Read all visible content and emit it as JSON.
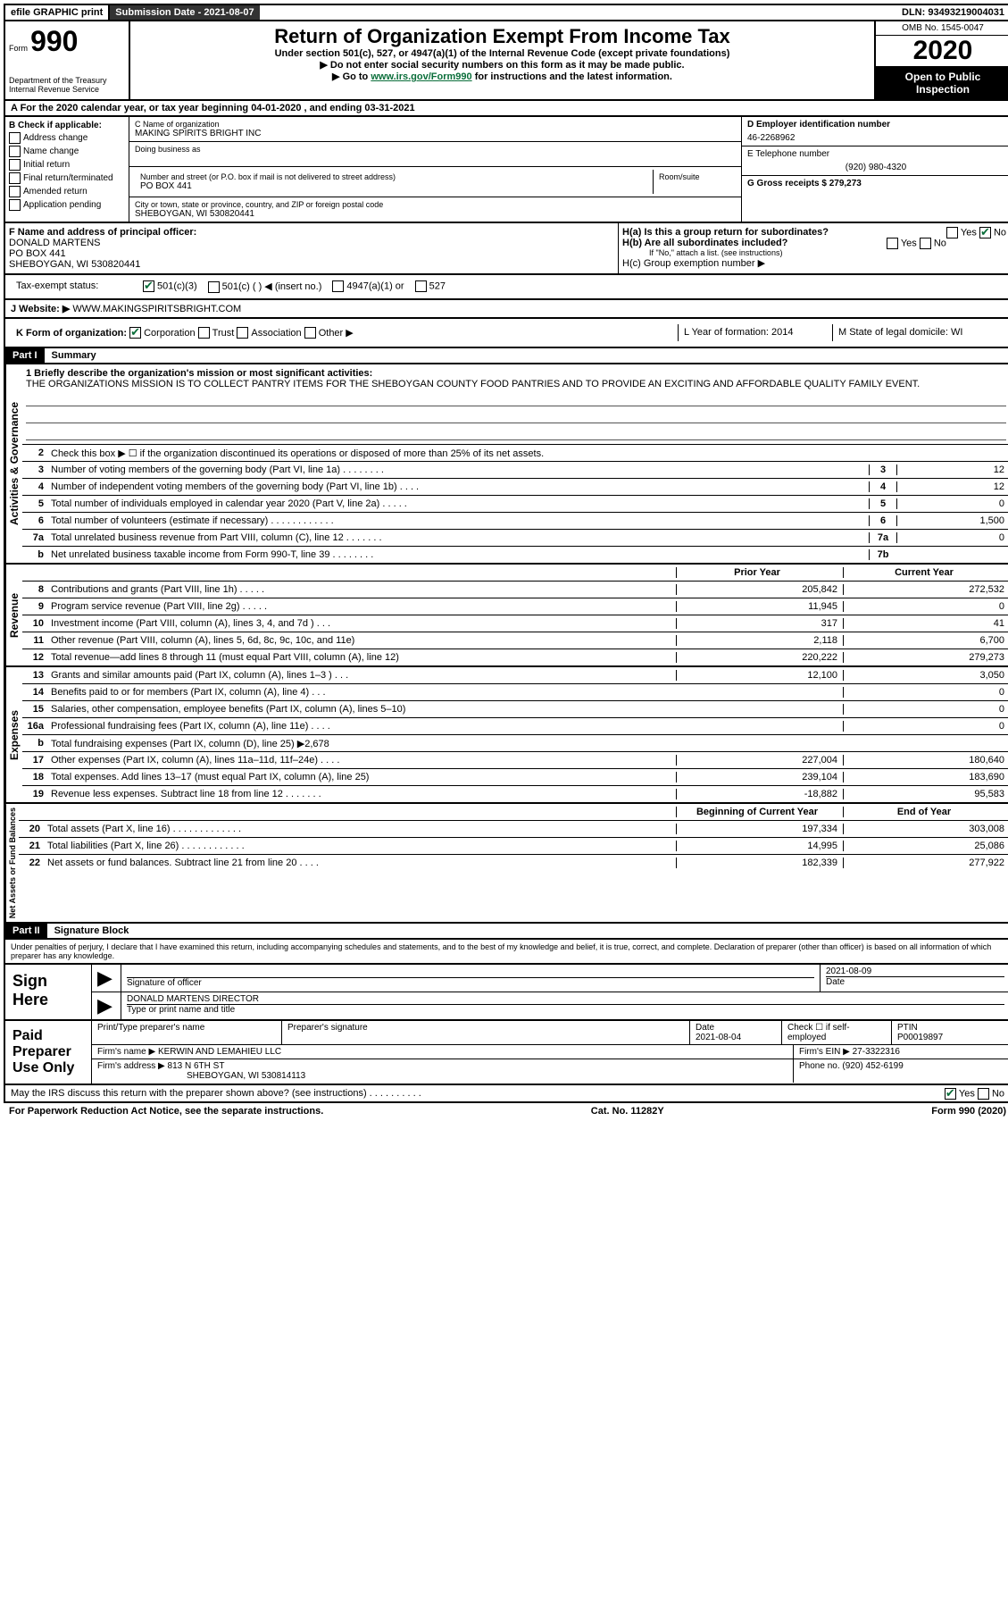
{
  "topbar": {
    "efile": "efile GRAPHIC print",
    "submission_label": "Submission Date - 2021-08-07",
    "dln": "DLN: 93493219004031"
  },
  "header": {
    "form_label": "Form",
    "form_no": "990",
    "title": "Return of Organization Exempt From Income Tax",
    "subtitle1": "Under section 501(c), 527, or 4947(a)(1) of the Internal Revenue Code (except private foundations)",
    "subtitle2": "▶ Do not enter social security numbers on this form as it may be made public.",
    "subtitle3_prefix": "▶ Go to ",
    "subtitle3_link": "www.irs.gov/Form990",
    "subtitle3_suffix": " for instructions and the latest information.",
    "omb": "OMB No. 1545-0047",
    "year": "2020",
    "open": "Open to Public Inspection",
    "dept": "Department of the Treasury Internal Revenue Service"
  },
  "period": "A For the 2020 calendar year, or tax year beginning 04-01-2020    , and ending 03-31-2021",
  "boxB": {
    "label": "B Check if applicable:",
    "opts": [
      "Address change",
      "Name change",
      "Initial return",
      "Final return/terminated",
      "Amended return",
      "Application pending"
    ]
  },
  "boxC": {
    "name_label": "C Name of organization",
    "name": "MAKING SPIRITS BRIGHT INC",
    "dba_label": "Doing business as",
    "addr_label": "Number and street (or P.O. box if mail is not delivered to street address)",
    "room_label": "Room/suite",
    "addr": "PO BOX 441",
    "city_label": "City or town, state or province, country, and ZIP or foreign postal code",
    "city": "SHEBOYGAN, WI  530820441"
  },
  "boxD": {
    "ein_label": "D Employer identification number",
    "ein": "46-2268962",
    "phone_label": "E Telephone number",
    "phone": "(920) 980-4320",
    "gross_label": "G Gross receipts $ 279,273"
  },
  "boxF": {
    "label": "F  Name and address of principal officer:",
    "name": "DONALD MARTENS",
    "addr1": "PO BOX 441",
    "addr2": "SHEBOYGAN, WI  530820441"
  },
  "boxH": {
    "ha": "H(a)  Is this a group return for subordinates?",
    "hb": "H(b)  Are all subordinates included?",
    "hb_note": "If \"No,\" attach a list. (see instructions)",
    "hc": "H(c)  Group exemption number ▶"
  },
  "taxexempt": {
    "label": "Tax-exempt status:",
    "o1": "501(c)(3)",
    "o2": "501(c) (  ) ◀ (insert no.)",
    "o3": "4947(a)(1) or",
    "o4": "527"
  },
  "website": {
    "label": "J    Website: ▶",
    "val": "WWW.MAKINGSPIRITSBRIGHT.COM"
  },
  "boxK": {
    "label": "K Form of organization:",
    "corp": "Corporation",
    "trust": "Trust",
    "assoc": "Association",
    "other": "Other ▶"
  },
  "boxL": "L Year of formation: 2014",
  "boxM": "M State of legal domicile: WI",
  "part1": {
    "header": "Part I",
    "title": "Summary",
    "line1_label": "1  Briefly describe the organization's mission or most significant activities:",
    "mission": "THE ORGANIZATIONS MISSION IS TO COLLECT PANTRY ITEMS FOR THE SHEBOYGAN COUNTY FOOD PANTRIES AND TO PROVIDE AN EXCITING AND AFFORDABLE QUALITY FAMILY EVENT.",
    "line2": "Check this box ▶ ☐  if the organization discontinued its operations or disposed of more than 25% of its net assets.",
    "governance_label": "Activities & Governance",
    "revenue_label": "Revenue",
    "expenses_label": "Expenses",
    "netassets_label": "Net Assets or Fund Balances",
    "gov_lines": [
      {
        "n": "3",
        "t": "Number of voting members of the governing body (Part VI, line 1a)  .   .   .   .   .   .   .   .",
        "b": "3",
        "v": "12"
      },
      {
        "n": "4",
        "t": "Number of independent voting members of the governing body (Part VI, line 1b)   .   .   .   .",
        "b": "4",
        "v": "12"
      },
      {
        "n": "5",
        "t": "Total number of individuals employed in calendar year 2020 (Part V, line 2a)   .   .   .   .   .",
        "b": "5",
        "v": "0"
      },
      {
        "n": "6",
        "t": "Total number of volunteers (estimate if necessary)    .   .   .   .   .   .   .   .   .   .   .   .",
        "b": "6",
        "v": "1,500"
      },
      {
        "n": "7a",
        "t": "Total unrelated business revenue from Part VIII, column (C), line 12   .   .   .   .   .   .   .",
        "b": "7a",
        "v": "0"
      },
      {
        "n": "b",
        "t": "Net unrelated business taxable income from Form 990-T, line 39    .   .   .   .   .   .   .   .",
        "b": "7b",
        "v": ""
      }
    ],
    "prior_year": "Prior Year",
    "current_year": "Current Year",
    "rev_lines": [
      {
        "n": "8",
        "t": "Contributions and grants (Part VIII, line 1h)   .   .   .   .   .",
        "py": "205,842",
        "cy": "272,532"
      },
      {
        "n": "9",
        "t": "Program service revenue (Part VIII, line 2g)    .   .   .   .   .",
        "py": "11,945",
        "cy": "0"
      },
      {
        "n": "10",
        "t": "Investment income (Part VIII, column (A), lines 3, 4, and 7d )    .   .   .",
        "py": "317",
        "cy": "41"
      },
      {
        "n": "11",
        "t": "Other revenue (Part VIII, column (A), lines 5, 6d, 8c, 9c, 10c, and 11e)",
        "py": "2,118",
        "cy": "6,700"
      },
      {
        "n": "12",
        "t": "Total revenue—add lines 8 through 11 (must equal Part VIII, column (A), line 12)",
        "py": "220,222",
        "cy": "279,273"
      }
    ],
    "exp_lines": [
      {
        "n": "13",
        "t": "Grants and similar amounts paid (Part IX, column (A), lines 1–3 )   .   .   .",
        "py": "12,100",
        "cy": "3,050"
      },
      {
        "n": "14",
        "t": "Benefits paid to or for members (Part IX, column (A), line 4)   .   .   .",
        "py": "",
        "cy": "0"
      },
      {
        "n": "15",
        "t": "Salaries, other compensation, employee benefits (Part IX, column (A), lines 5–10)",
        "py": "",
        "cy": "0"
      },
      {
        "n": "16a",
        "t": "Professional fundraising fees (Part IX, column (A), line 11e)   .   .   .   .",
        "py": "",
        "cy": "0"
      },
      {
        "n": "b",
        "t": "Total fundraising expenses (Part IX, column (D), line 25) ▶2,678",
        "py": "GRAY",
        "cy": "GRAY"
      },
      {
        "n": "17",
        "t": "Other expenses (Part IX, column (A), lines 11a–11d, 11f–24e)   .   .   .   .",
        "py": "227,004",
        "cy": "180,640"
      },
      {
        "n": "18",
        "t": "Total expenses. Add lines 13–17 (must equal Part IX, column (A), line 25)",
        "py": "239,104",
        "cy": "183,690"
      },
      {
        "n": "19",
        "t": "Revenue less expenses. Subtract line 18 from line 12  .   .   .   .   .   .   .",
        "py": "-18,882",
        "cy": "95,583"
      }
    ],
    "boy": "Beginning of Current Year",
    "eoy": "End of Year",
    "na_lines": [
      {
        "n": "20",
        "t": "Total assets (Part X, line 16)  .   .   .   .   .   .   .   .   .   .   .   .   .",
        "py": "197,334",
        "cy": "303,008"
      },
      {
        "n": "21",
        "t": "Total liabilities (Part X, line 26)   .   .   .   .   .   .   .   .   .   .   .   .",
        "py": "14,995",
        "cy": "25,086"
      },
      {
        "n": "22",
        "t": "Net assets or fund balances. Subtract line 21 from line 20   .   .   .   .",
        "py": "182,339",
        "cy": "277,922"
      }
    ]
  },
  "part2": {
    "header": "Part II",
    "title": "Signature Block",
    "penalties": "Under penalties of perjury, I declare that I have examined this return, including accompanying schedules and statements, and to the best of my knowledge and belief, it is true, correct, and complete. Declaration of preparer (other than officer) is based on all information of which preparer has any knowledge.",
    "sign_here": "Sign Here",
    "sig_officer": "Signature of officer",
    "sig_date": "2021-08-09",
    "sig_date_label": "Date",
    "officer_name": "DONALD MARTENS  DIRECTOR",
    "type_label": "Type or print name and title",
    "paid_label": "Paid Preparer Use Only",
    "prep_name_label": "Print/Type preparer's name",
    "prep_sig_label": "Preparer's signature",
    "prep_date_label": "Date",
    "prep_date": "2021-08-04",
    "check_self": "Check ☐ if self-employed",
    "ptin_label": "PTIN",
    "ptin": "P00019897",
    "firm_name_label": "Firm's name    ▶",
    "firm_name": "KERWIN AND LEMAHIEU LLC",
    "firm_ein_label": "Firm's EIN ▶",
    "firm_ein": "27-3322316",
    "firm_addr_label": "Firm's address ▶",
    "firm_addr1": "813 N 6TH ST",
    "firm_addr2": "SHEBOYGAN, WI  530814113",
    "phone_label": "Phone no.",
    "phone": "(920) 452-6199",
    "discuss": "May the IRS discuss this return with the preparer shown above? (see instructions)    .   .   .   .   .   .   .   .   .   .",
    "yes": "Yes",
    "no": "No"
  },
  "footer": {
    "paperwork": "For Paperwork Reduction Act Notice, see the separate instructions.",
    "cat": "Cat. No. 11282Y",
    "form": "Form 990 (2020)"
  }
}
